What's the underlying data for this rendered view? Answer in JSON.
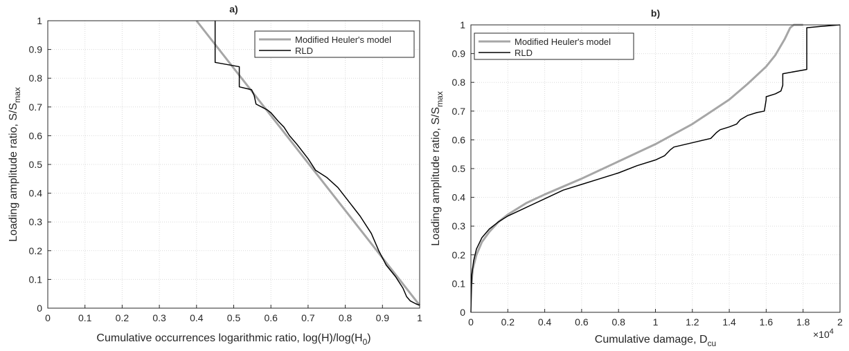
{
  "chart_data": [
    {
      "type": "line",
      "title": "a)",
      "xlabel": {
        "main": "Cumulative occurrences logarithmic ratio, log(H)/log(H",
        "sub": "0",
        "tail": ")"
      },
      "ylabel": {
        "main": "Loading amplitude ratio, S/S",
        "sub": "max"
      },
      "xlim": [
        0,
        1
      ],
      "ylim": [
        0,
        1
      ],
      "xticks": [
        0,
        0.1,
        0.2,
        0.3,
        0.4,
        0.5,
        0.6,
        0.7,
        0.8,
        0.9,
        1
      ],
      "xtick_labels": [
        "0",
        "0.1",
        "0.2",
        "0.3",
        "0.4",
        "0.5",
        "0.6",
        "0.7",
        "0.8",
        "0.9",
        "1"
      ],
      "yticks": [
        0,
        0.1,
        0.2,
        0.3,
        0.4,
        0.5,
        0.6,
        0.7,
        0.8,
        0.9,
        1
      ],
      "ytick_labels": [
        "0",
        "0.1",
        "0.2",
        "0.3",
        "0.4",
        "0.5",
        "0.6",
        "0.7",
        "0.8",
        "0.9",
        "1"
      ],
      "grid": true,
      "legend_position": "top-right",
      "series": [
        {
          "name": "Modified Heuler's model",
          "color": "#a6a6a6",
          "x": [
            0.4,
            0.5,
            0.6,
            0.7,
            0.8,
            0.9,
            1.0
          ],
          "y": [
            1.0,
            0.835,
            0.67,
            0.505,
            0.34,
            0.175,
            0.01
          ]
        },
        {
          "name": "RLD",
          "color": "#000000",
          "x": [
            0.45,
            0.45,
            0.515,
            0.515,
            0.548,
            0.555,
            0.56,
            0.59,
            0.6,
            0.62,
            0.635,
            0.65,
            0.67,
            0.7,
            0.72,
            0.75,
            0.78,
            0.81,
            0.84,
            0.87,
            0.89,
            0.91,
            0.935,
            0.955,
            0.965,
            0.975,
            0.99,
            1.0
          ],
          "y": [
            1.0,
            0.855,
            0.84,
            0.77,
            0.76,
            0.74,
            0.71,
            0.69,
            0.68,
            0.65,
            0.63,
            0.6,
            0.57,
            0.52,
            0.48,
            0.455,
            0.42,
            0.37,
            0.32,
            0.26,
            0.2,
            0.15,
            0.11,
            0.07,
            0.04,
            0.025,
            0.015,
            0.01
          ]
        }
      ]
    },
    {
      "type": "line",
      "title": "b)",
      "xlabel": {
        "main": "Cumulative damage, D",
        "sub": "cu",
        "tail": ""
      },
      "ylabel": {
        "main": "Loading amplitude ratio, S/S",
        "sub": "max"
      },
      "x_multiplier": {
        "base": "×10",
        "exponent": "4"
      },
      "xlim": [
        0,
        2
      ],
      "ylim": [
        0,
        1
      ],
      "xticks": [
        0,
        0.2,
        0.4,
        0.6,
        0.8,
        1,
        1.2,
        1.4,
        1.6,
        1.8,
        2
      ],
      "xtick_labels": [
        "0",
        "0.2",
        "0.4",
        "0.6",
        "0.8",
        "1",
        "1.2",
        "1.4",
        "1.6",
        "1.8",
        "2"
      ],
      "yticks": [
        0,
        0.1,
        0.2,
        0.3,
        0.4,
        0.5,
        0.6,
        0.7,
        0.8,
        0.9,
        1
      ],
      "ytick_labels": [
        "0",
        "0.1",
        "0.2",
        "0.3",
        "0.4",
        "0.5",
        "0.6",
        "0.7",
        "0.8",
        "0.9",
        "1"
      ],
      "grid": true,
      "legend_position": "top-left",
      "series": [
        {
          "name": "Modified Heuler's model",
          "color": "#a6a6a6",
          "x": [
            0.003,
            0.01,
            0.03,
            0.06,
            0.1,
            0.15,
            0.2,
            0.3,
            0.4,
            0.6,
            0.8,
            1.0,
            1.2,
            1.4,
            1.5,
            1.6,
            1.65,
            1.7,
            1.73,
            1.75,
            1.8
          ],
          "y": [
            0.1,
            0.15,
            0.2,
            0.245,
            0.28,
            0.315,
            0.34,
            0.38,
            0.41,
            0.465,
            0.525,
            0.585,
            0.655,
            0.74,
            0.795,
            0.855,
            0.895,
            0.95,
            0.99,
            1.0,
            1.0
          ]
        },
        {
          "name": "RLD",
          "color": "#000000",
          "x": [
            0.0,
            0.005,
            0.015,
            0.03,
            0.06,
            0.1,
            0.15,
            0.2,
            0.3,
            0.4,
            0.5,
            0.6,
            0.7,
            0.8,
            0.9,
            1.0,
            1.05,
            1.08,
            1.1,
            1.2,
            1.3,
            1.33,
            1.35,
            1.4,
            1.44,
            1.46,
            1.5,
            1.55,
            1.59,
            1.6,
            1.6,
            1.65,
            1.68,
            1.69,
            1.69,
            1.82,
            1.82,
            1.9,
            2.0
          ],
          "y": [
            0.0,
            0.13,
            0.18,
            0.22,
            0.26,
            0.29,
            0.315,
            0.335,
            0.365,
            0.395,
            0.425,
            0.445,
            0.465,
            0.485,
            0.51,
            0.53,
            0.545,
            0.565,
            0.575,
            0.59,
            0.605,
            0.625,
            0.635,
            0.645,
            0.655,
            0.67,
            0.685,
            0.695,
            0.7,
            0.74,
            0.75,
            0.76,
            0.77,
            0.79,
            0.83,
            0.845,
            0.99,
            0.995,
            1.0
          ]
        }
      ]
    }
  ]
}
